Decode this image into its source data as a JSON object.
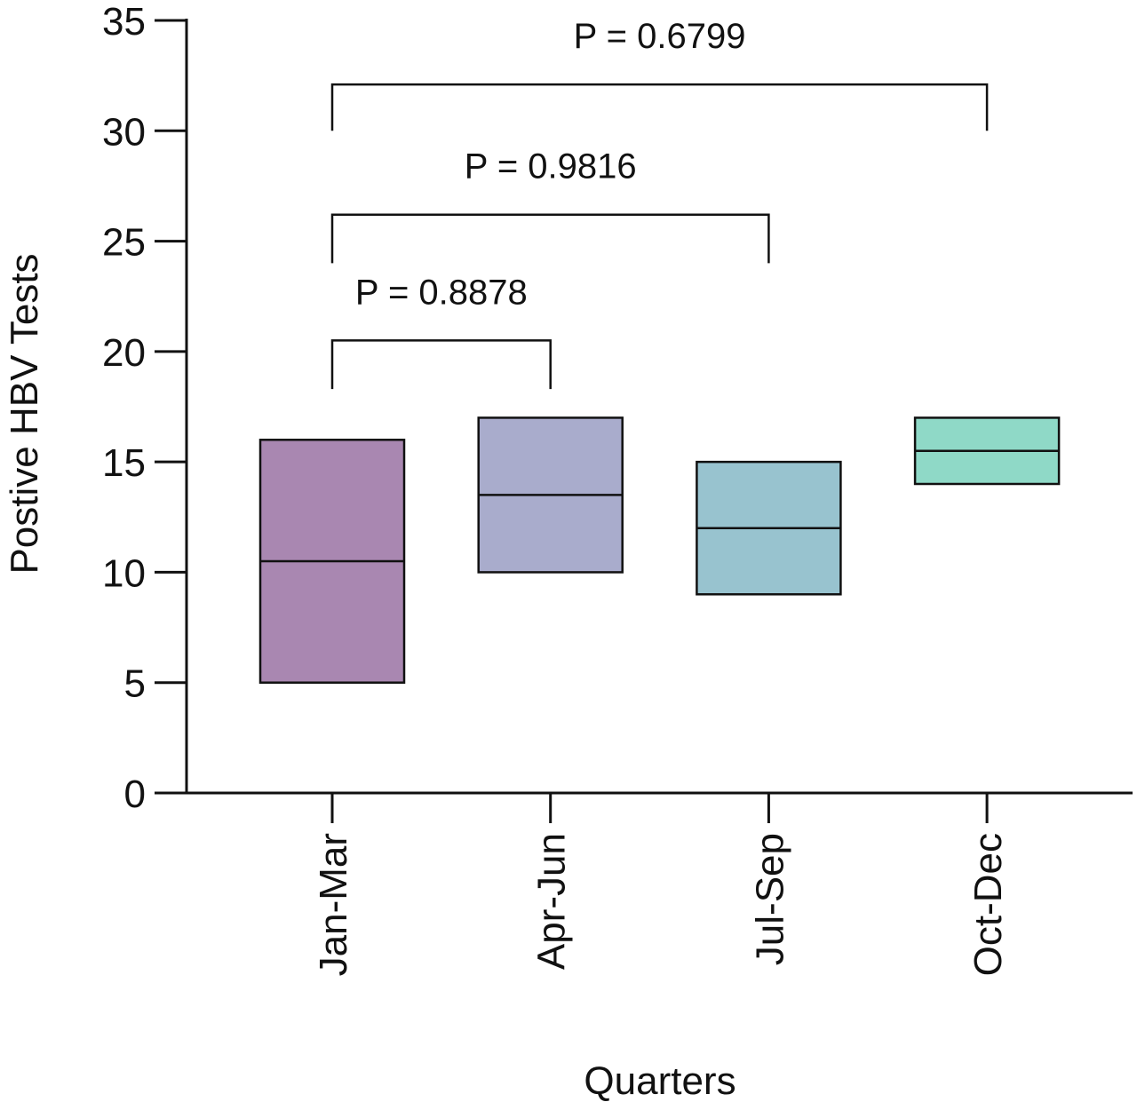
{
  "chart_data": {
    "type": "box",
    "xlabel": "Quarters",
    "ylabel": "Postive HBV Tests",
    "ylim": [
      0,
      35
    ],
    "yticks": [
      0,
      5,
      10,
      15,
      20,
      25,
      30,
      35
    ],
    "categories": [
      "Jan-Mar",
      "Apr-Jun",
      "Jul-Sep",
      "Oct-Dec"
    ],
    "boxes": [
      {
        "category": "Jan-Mar",
        "min": 5,
        "median": 10.5,
        "max": 16,
        "color": "#A987B1"
      },
      {
        "category": "Apr-Jun",
        "min": 10,
        "median": 13.5,
        "max": 17,
        "color": "#A9ACCC"
      },
      {
        "category": "Jul-Sep",
        "min": 9,
        "median": 12,
        "max": 15,
        "color": "#98C3CF"
      },
      {
        "category": "Oct-Dec",
        "min": 14,
        "median": 15.5,
        "max": 17,
        "color": "#8FD9C7"
      }
    ],
    "comparisons": [
      {
        "from": "Jan-Mar",
        "to": "Apr-Jun",
        "label": "P = 0.8878",
        "y": 20.5,
        "drop_y": 18.3
      },
      {
        "from": "Jan-Mar",
        "to": "Jul-Sep",
        "label": "P = 0.9816",
        "y": 26.2,
        "drop_y": 24.0
      },
      {
        "from": "Jan-Mar",
        "to": "Oct-Dec",
        "label": "P = 0.6799",
        "y": 32.1,
        "drop_y": 30.0
      }
    ],
    "grid": false,
    "legend": "none"
  }
}
